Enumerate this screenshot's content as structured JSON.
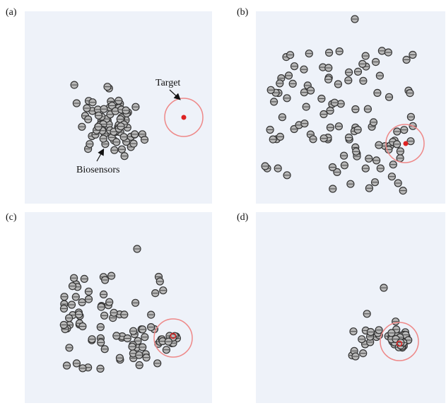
{
  "panels": [
    {
      "label": "(a)"
    },
    {
      "label": "(b)"
    },
    {
      "label": "(c)"
    },
    {
      "label": "(d)"
    }
  ],
  "annotations": {
    "target": "Target",
    "biosensors": "Biosensors"
  }
}
